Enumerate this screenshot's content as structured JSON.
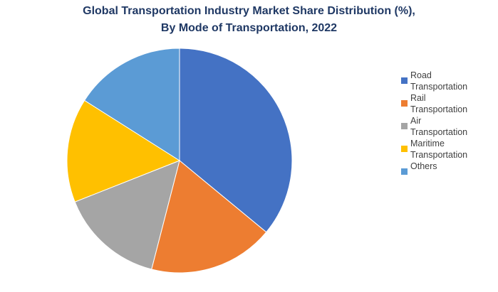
{
  "chart_data": {
    "type": "pie",
    "title_line1": "Global Transportation Industry Market Share Distribution (%),",
    "title_line2": "By Mode of Transportation, 2022",
    "legend_position": "right",
    "slices": [
      {
        "label": "Road\nTransportation",
        "value": 36,
        "color": "#4472c4"
      },
      {
        "label": "Rail\nTransportation",
        "value": 18,
        "color": "#ed7d31"
      },
      {
        "label": "Air\nTransportation",
        "value": 15,
        "color": "#a5a5a5"
      },
      {
        "label": "Maritime\nTransportation",
        "value": 15,
        "color": "#ffc000"
      },
      {
        "label": "Others",
        "value": 16,
        "color": "#5b9bd5"
      }
    ]
  }
}
